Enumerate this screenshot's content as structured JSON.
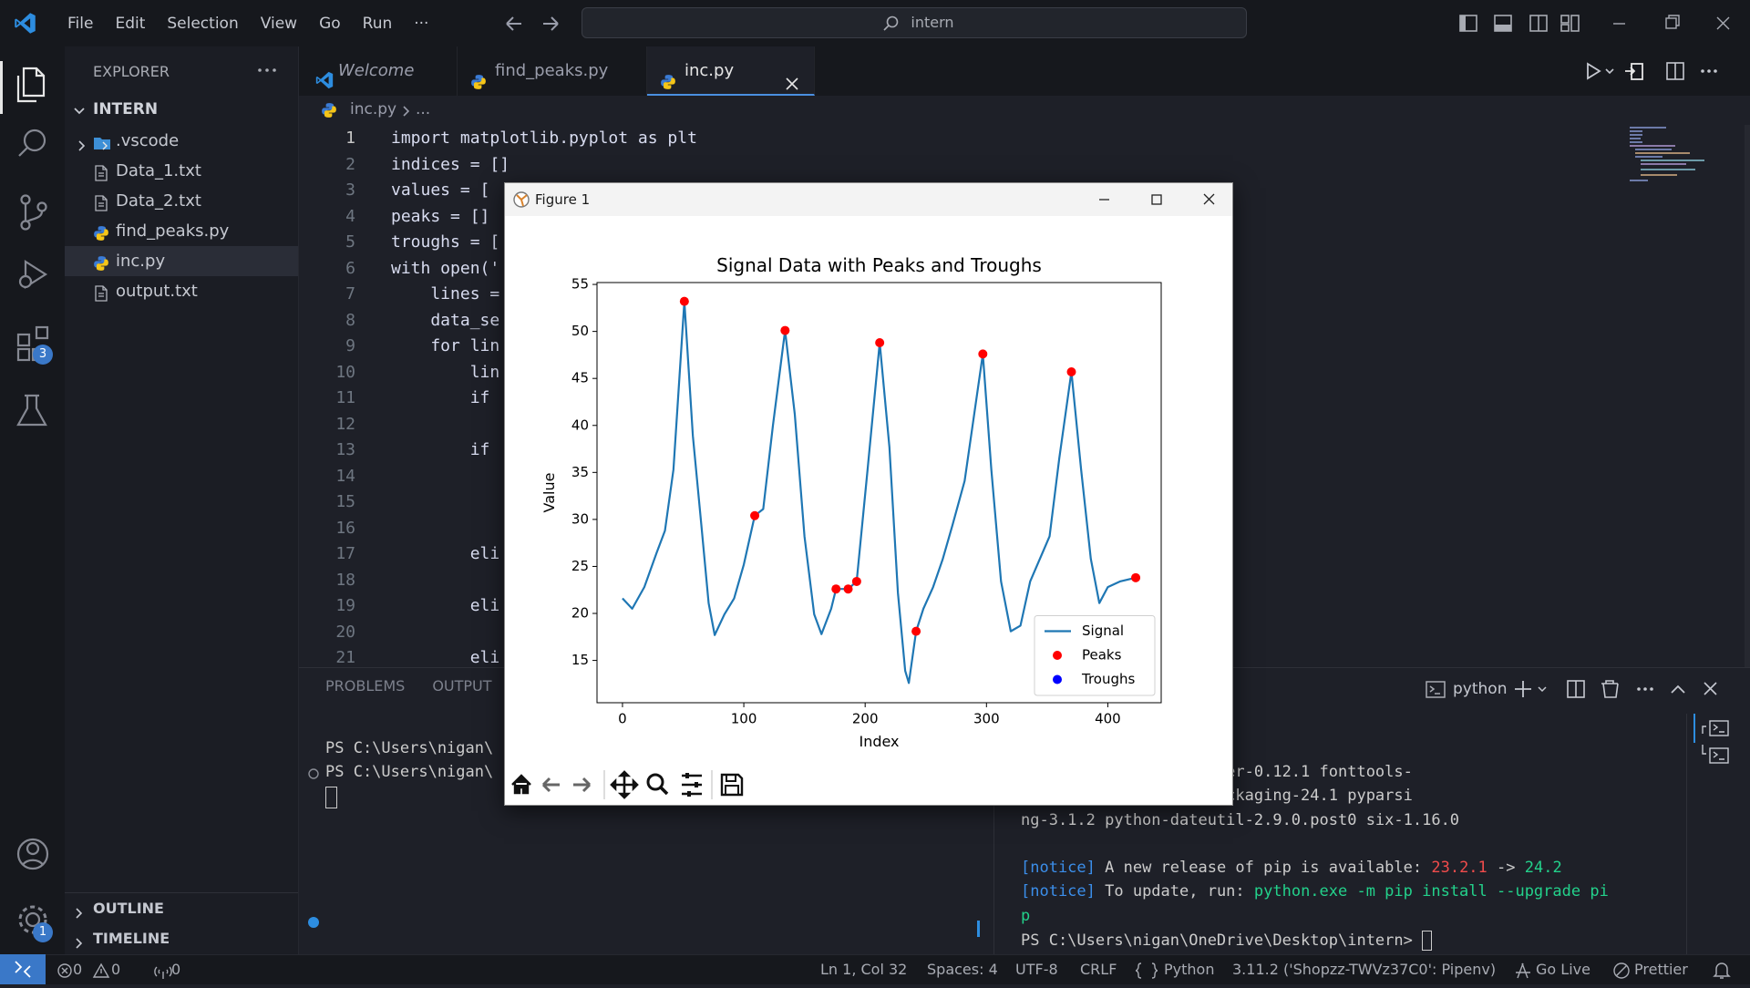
{
  "title_bar": {
    "menu": [
      "File",
      "Edit",
      "Selection",
      "View",
      "Go",
      "Run",
      "···"
    ],
    "search": "intern"
  },
  "activity_bar": {
    "badges": [
      "3",
      "1"
    ]
  },
  "explorer": {
    "title": "EXPLORER",
    "folder": "INTERN",
    "files": [
      ".vscode",
      "Data_1.txt",
      "Data_2.txt",
      "find_peaks.py",
      "inc.py",
      "output.txt"
    ],
    "sections": [
      "OUTLINE",
      "TIMELINE"
    ]
  },
  "tabs": [
    "Welcome",
    "find_peaks.py",
    "inc.py"
  ],
  "breadcrumb": [
    "inc.py",
    "..."
  ],
  "editor": {
    "line_numbers": [
      "1",
      "2",
      "3",
      "4",
      "5",
      "6",
      "7",
      "8",
      "9",
      "10",
      "11",
      "12",
      "13",
      "14",
      "15",
      "16",
      "17",
      "18",
      "19",
      "20",
      "21"
    ],
    "lines": [
      "import matplotlib.pyplot as plt",
      "indices = []",
      "values = [",
      "peaks = []",
      "troughs = [",
      "with open('",
      "    lines =",
      "    data_se",
      "    for lin",
      "        lin",
      "        if",
      "",
      "        if",
      "",
      "",
      "",
      "        eli",
      "",
      "        eli",
      "",
      "        eli"
    ]
  },
  "panel": {
    "tabs": [
      "PROBLEMS",
      "OUTPUT"
    ],
    "terminal_name": "python",
    "left_terminal": [
      "PS C:\\Users\\nigan\\",
      "PS C:\\Users\\nigan\\"
    ],
    "install_output": [
      "d contourpy-1.2.1 cycler-0.12.1 fonttools-",
      ".5 matplotlib-3.9.2 packaging-24.1 pyparsi",
      "ng-3.1.2 python-dateutil-2.9.0.post0 six-1.16.0"
    ],
    "notices": [
      [
        {
          "text": "[notice]",
          "color": "#3b8eea"
        },
        {
          "text": " A new release of pip is available: ",
          "color": "#cccccc"
        },
        {
          "text": "23.2.1",
          "color": "#f14c4c"
        },
        {
          "text": " -> ",
          "color": "#cccccc"
        },
        {
          "text": "24.2",
          "color": "#23d18b"
        }
      ],
      [
        {
          "text": "[notice]",
          "color": "#3b8eea"
        },
        {
          "text": " To update, run: ",
          "color": "#cccccc"
        },
        {
          "text": "python.exe -m pip install --upgrade pi",
          "color": "#23d18b"
        }
      ],
      [
        {
          "text": "p",
          "color": "#23d18b"
        }
      ]
    ],
    "prompt": "PS C:\\Users\\nigan\\OneDrive\\Desktop\\intern> "
  },
  "status_bar": {
    "errors": "0",
    "warnings": "0",
    "ports": "0",
    "items": [
      "Ln 1, Col 32",
      "Spaces: 4",
      "UTF-8",
      "CRLF",
      "Python",
      "3.11.2 ('Shopzz-TWVz37C0': Pipenv)",
      "Go Live",
      "Prettier"
    ]
  },
  "figure": {
    "window_title": "Figure 1"
  },
  "chart_data": {
    "type": "line",
    "title": "Signal Data with Peaks and Troughs",
    "x_label": "Index",
    "y_label": "Value",
    "xlim": [
      -21,
      444
    ],
    "ylim": [
      10.5,
      55.2
    ],
    "xticks": [
      0,
      100,
      200,
      300,
      400
    ],
    "yticks": [
      15,
      20,
      25,
      30,
      35,
      40,
      45,
      50,
      55
    ],
    "legend": "lower right",
    "series": [
      {
        "name": "Signal",
        "color": "#1f77b4",
        "mode": "line",
        "x": [
          0,
          8,
          18,
          28,
          35,
          42,
          51,
          58,
          65,
          71,
          76,
          84,
          92,
          100,
          109,
          116,
          124,
          134,
          142,
          150,
          158,
          164,
          172,
          176,
          186,
          193,
          202,
          212,
          220,
          227,
          233,
          236,
          242,
          248,
          256,
          264,
          272,
          282,
          297,
          304,
          312,
          320,
          328,
          336,
          344,
          352,
          360,
          370,
          378,
          386,
          393,
          400,
          410,
          423
        ],
        "values": [
          21.6,
          20.5,
          22.8,
          26.4,
          28.8,
          35.3,
          53.2,
          38.9,
          29.4,
          21.1,
          17.7,
          19.9,
          21.6,
          25.2,
          30.4,
          31.1,
          40.0,
          50.1,
          41.2,
          28.2,
          19.9,
          17.8,
          20.5,
          22.6,
          22.6,
          23.4,
          35.3,
          48.8,
          37.7,
          22.2,
          13.9,
          12.6,
          18.1,
          20.5,
          22.8,
          25.8,
          29.4,
          34.1,
          47.6,
          35.3,
          23.4,
          18.1,
          18.7,
          23.4,
          25.8,
          28.2,
          36.5,
          45.7,
          35.3,
          25.8,
          21.1,
          22.8,
          23.4,
          23.8
        ]
      },
      {
        "name": "Peaks",
        "color": "#ff0000",
        "mode": "markers",
        "x": [
          51,
          109,
          134,
          176,
          186,
          193,
          212,
          242,
          297,
          370,
          423
        ],
        "values": [
          53.2,
          30.4,
          50.1,
          22.6,
          22.6,
          23.4,
          48.8,
          18.1,
          47.6,
          45.7,
          23.8
        ]
      },
      {
        "name": "Troughs",
        "color": "#0000ff",
        "mode": "markers",
        "x": [],
        "values": []
      }
    ]
  }
}
